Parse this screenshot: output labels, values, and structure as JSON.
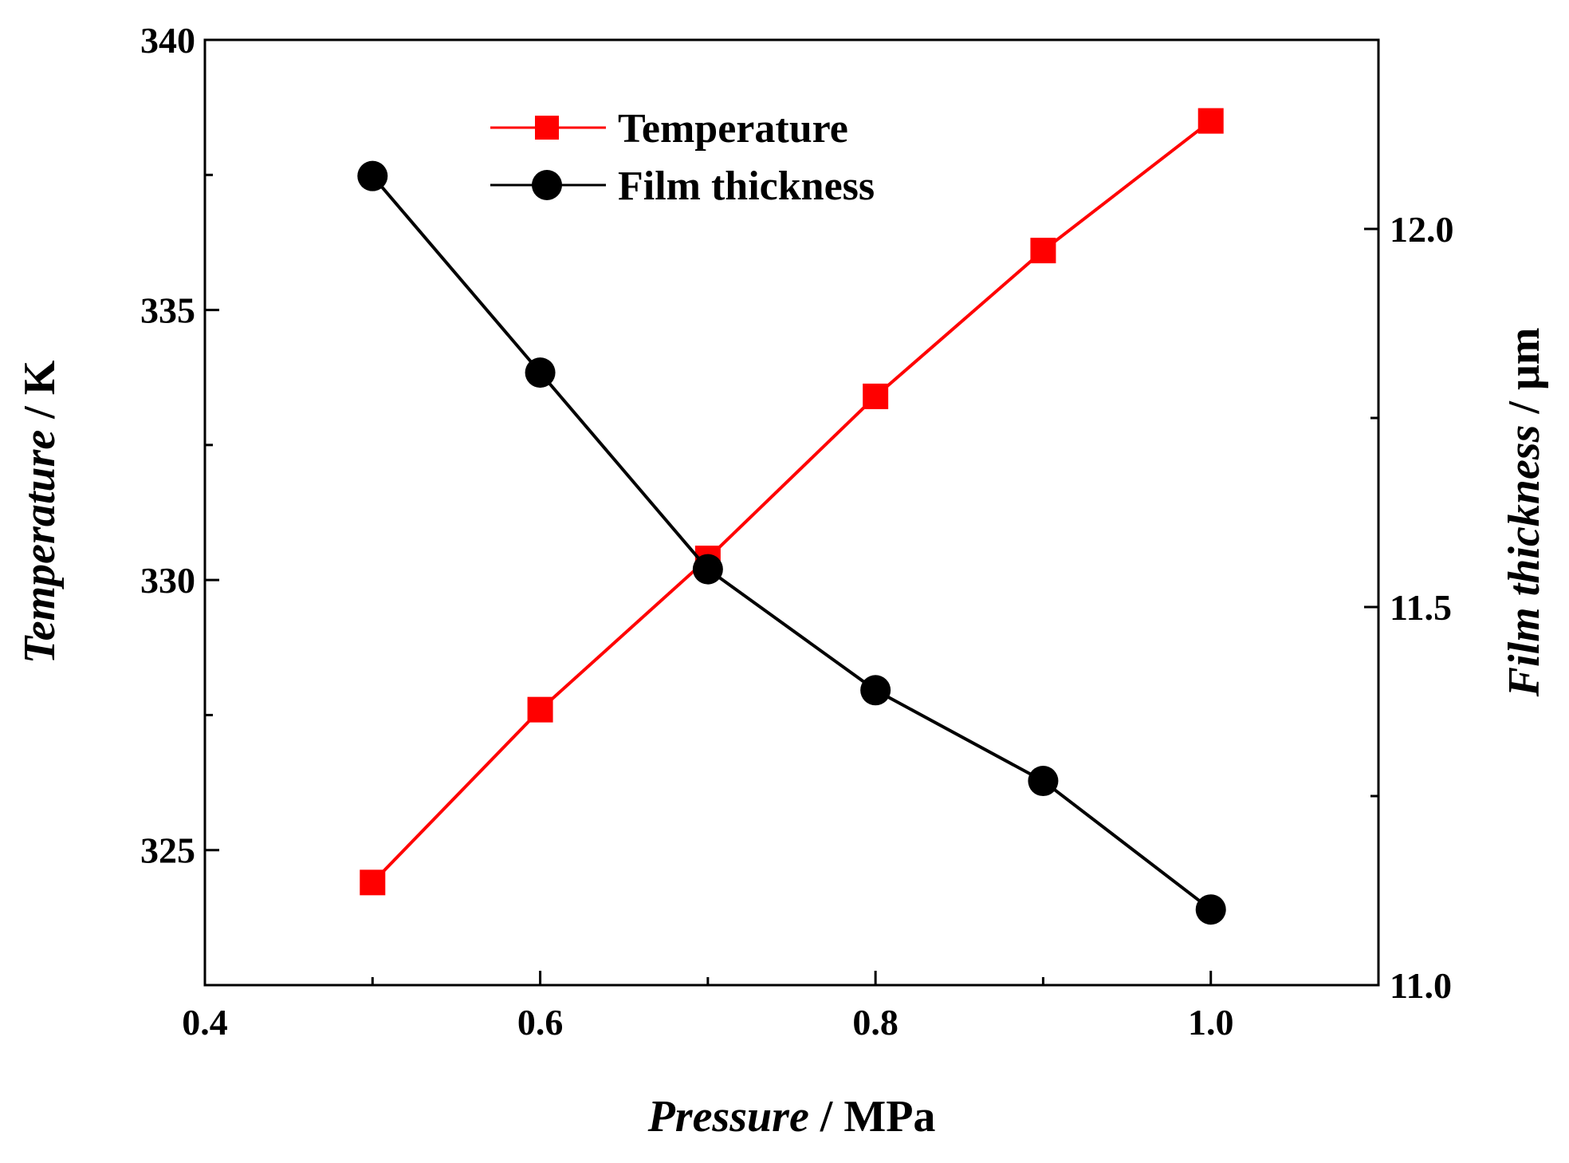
{
  "chart_data": {
    "type": "line",
    "title": "",
    "x": [
      0.5,
      0.6,
      0.7,
      0.8,
      0.9,
      1.0
    ],
    "xlabel": {
      "name": "Pressure",
      "unit": " / MPa"
    },
    "xlim": [
      0.4,
      1.1
    ],
    "xticks": [
      "0.4",
      "0.6",
      "0.8",
      "1.0"
    ],
    "xtick_values": [
      0.4,
      0.6,
      0.8,
      1.0
    ],
    "y_left": {
      "label": {
        "name": "Temperature",
        "unit": " / K"
      },
      "lim": [
        322.5,
        340
      ],
      "ticks": [
        "325",
        "330",
        "335",
        "340"
      ],
      "tick_values": [
        325,
        330,
        335,
        340
      ]
    },
    "y_right": {
      "label": {
        "name": "Film thickness",
        "unit": " / μm"
      },
      "lim": [
        11.0,
        12.25
      ],
      "ticks": [
        "11.0",
        "11.5",
        "12.0"
      ],
      "tick_values": [
        11.0,
        11.5,
        12.0
      ]
    },
    "series": [
      {
        "name": "Temperature",
        "axis": "left",
        "marker": "square",
        "color": "#ff0000",
        "values": [
          324.4,
          327.6,
          330.4,
          333.4,
          336.1,
          338.5
        ]
      },
      {
        "name": "Film thickness",
        "axis": "right",
        "marker": "circle",
        "color": "#000000",
        "values": [
          12.07,
          11.81,
          11.55,
          11.39,
          11.27,
          11.1
        ]
      }
    ],
    "legend": "top-center",
    "grid": false
  }
}
